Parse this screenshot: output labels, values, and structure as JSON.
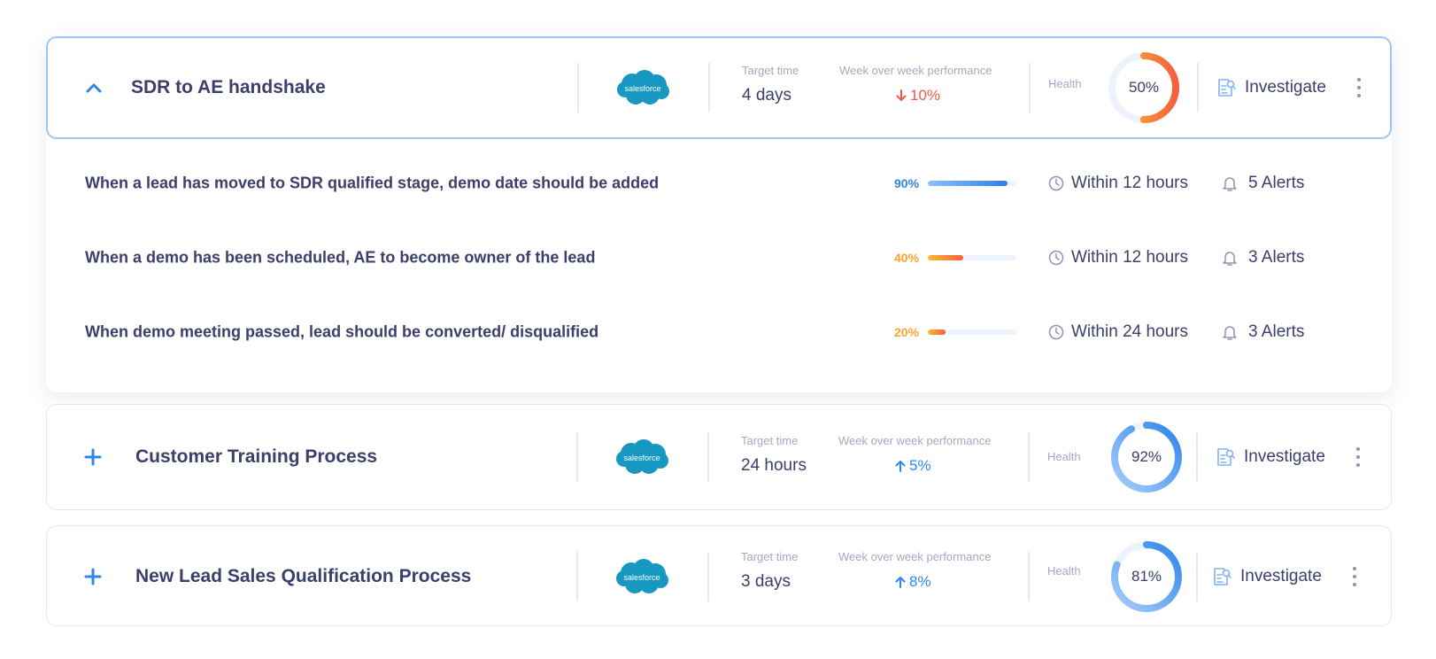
{
  "logo_text": "salesforce",
  "labels": {
    "target_time": "Target time",
    "wow": "Week over week performance",
    "health": "Health",
    "investigate": "Investigate"
  },
  "colors": {
    "text": "#3a3f6b",
    "muted": "#a3a8c2",
    "blue": "#2f86ea",
    "orange": "#fba62f",
    "red": "#f0574f",
    "salesforce": "#1798c1"
  },
  "processes": [
    {
      "title": "SDR to AE handshake",
      "expanded": true,
      "target_time": "4 days",
      "wow": "10%",
      "wow_direction": "down",
      "health": "50%",
      "health_value": 50,
      "rules": [
        {
          "text": "When a lead has moved to SDR qualified stage, demo date should be added",
          "pct": "90%",
          "pct_value": 90,
          "tone": "blue",
          "time": "Within 12 hours",
          "alerts": "5 Alerts"
        },
        {
          "text": "When a demo  has been scheduled, AE to become owner of the lead",
          "pct": "40%",
          "pct_value": 40,
          "tone": "orange",
          "time": "Within 12 hours",
          "alerts": "3 Alerts"
        },
        {
          "text": "When demo meeting passed, lead should be converted/ disqualified",
          "pct": "20%",
          "pct_value": 20,
          "tone": "orange",
          "time": "Within 24 hours",
          "alerts": "3 Alerts"
        }
      ]
    },
    {
      "title": "Customer Training Process",
      "expanded": false,
      "target_time": "24 hours",
      "wow": "5%",
      "wow_direction": "up",
      "health": "92%",
      "health_value": 92
    },
    {
      "title": "New Lead Sales Qualification Process",
      "expanded": false,
      "target_time": "3 days",
      "wow": "8%",
      "wow_direction": "up",
      "health": "81%",
      "health_value": 81
    }
  ]
}
